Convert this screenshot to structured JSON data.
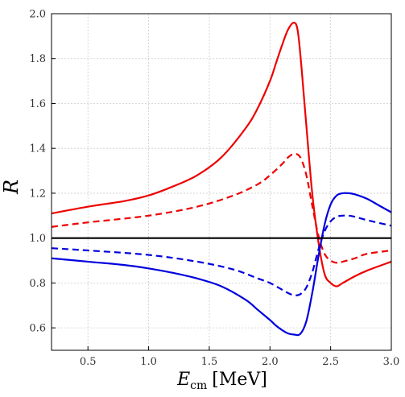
{
  "chart_data": {
    "type": "line",
    "title": "",
    "xlabel": {
      "main": "E",
      "sub": "cm",
      "unit": "[MeV]"
    },
    "ylabel": "R",
    "xlim": [
      0.2,
      3.0
    ],
    "ylim": [
      0.5,
      2.0
    ],
    "xticks": [
      "0.5",
      "1.0",
      "1.5",
      "2.0",
      "2.5",
      "3.0"
    ],
    "xtick_values": [
      0.5,
      1.0,
      1.5,
      2.0,
      2.5,
      3.0
    ],
    "yticks": [
      "0.6",
      "0.8",
      "1.0",
      "1.2",
      "1.4",
      "1.6",
      "1.8",
      "2.0"
    ],
    "ytick_values": [
      0.6,
      0.8,
      1.0,
      1.2,
      1.4,
      1.6,
      1.8,
      2.0
    ],
    "grid": true,
    "legend": "none",
    "series": [
      {
        "color": "#ee0000",
        "style": "solid",
        "x": [
          0.2,
          0.5,
          0.8,
          1.0,
          1.2,
          1.4,
          1.6,
          1.8,
          1.9,
          2.0,
          2.05,
          2.1,
          2.15,
          2.2,
          2.23,
          2.26,
          2.3,
          2.35,
          2.4,
          2.45,
          2.5,
          2.55,
          2.6,
          2.7,
          2.8,
          3.0
        ],
        "y": [
          1.11,
          1.14,
          1.165,
          1.19,
          1.23,
          1.28,
          1.36,
          1.49,
          1.58,
          1.7,
          1.78,
          1.86,
          1.93,
          1.96,
          1.92,
          1.76,
          1.5,
          1.19,
          0.98,
          0.84,
          0.8,
          0.785,
          0.8,
          0.83,
          0.855,
          0.895
        ]
      },
      {
        "color": "#ee0000",
        "style": "dashed",
        "x": [
          0.2,
          0.5,
          1.0,
          1.4,
          1.7,
          1.9,
          2.0,
          2.1,
          2.15,
          2.2,
          2.25,
          2.3,
          2.35,
          2.4,
          2.45,
          2.5,
          2.55,
          2.6,
          2.7,
          2.8,
          3.0
        ],
        "y": [
          1.05,
          1.07,
          1.1,
          1.14,
          1.19,
          1.24,
          1.28,
          1.33,
          1.36,
          1.375,
          1.36,
          1.28,
          1.14,
          1.01,
          0.93,
          0.9,
          0.89,
          0.895,
          0.91,
          0.93,
          0.945
        ]
      },
      {
        "color": "#0000dd",
        "style": "solid",
        "x": [
          0.2,
          0.5,
          0.8,
          1.0,
          1.2,
          1.4,
          1.6,
          1.8,
          1.9,
          2.0,
          2.05,
          2.1,
          2.15,
          2.2,
          2.25,
          2.3,
          2.35,
          2.4,
          2.45,
          2.5,
          2.55,
          2.6,
          2.65,
          2.7,
          2.8,
          2.9,
          3.0
        ],
        "y": [
          0.91,
          0.895,
          0.88,
          0.865,
          0.845,
          0.82,
          0.785,
          0.725,
          0.68,
          0.635,
          0.61,
          0.59,
          0.575,
          0.57,
          0.573,
          0.63,
          0.76,
          0.92,
          1.06,
          1.15,
          1.19,
          1.2,
          1.2,
          1.195,
          1.175,
          1.145,
          1.115
        ]
      },
      {
        "color": "#0000dd",
        "style": "dashed",
        "x": [
          0.2,
          0.5,
          1.0,
          1.4,
          1.7,
          1.9,
          2.0,
          2.1,
          2.15,
          2.2,
          2.25,
          2.3,
          2.35,
          2.4,
          2.45,
          2.5,
          2.55,
          2.6,
          2.65,
          2.7,
          2.8,
          3.0
        ],
        "y": [
          0.955,
          0.945,
          0.925,
          0.895,
          0.86,
          0.82,
          0.8,
          0.77,
          0.755,
          0.745,
          0.75,
          0.78,
          0.85,
          0.95,
          1.03,
          1.075,
          1.095,
          1.1,
          1.1,
          1.095,
          1.08,
          1.055
        ]
      },
      {
        "color": "#000000",
        "style": "solid",
        "x": [
          0.2,
          3.0
        ],
        "y": [
          1.0,
          1.0
        ]
      }
    ]
  }
}
